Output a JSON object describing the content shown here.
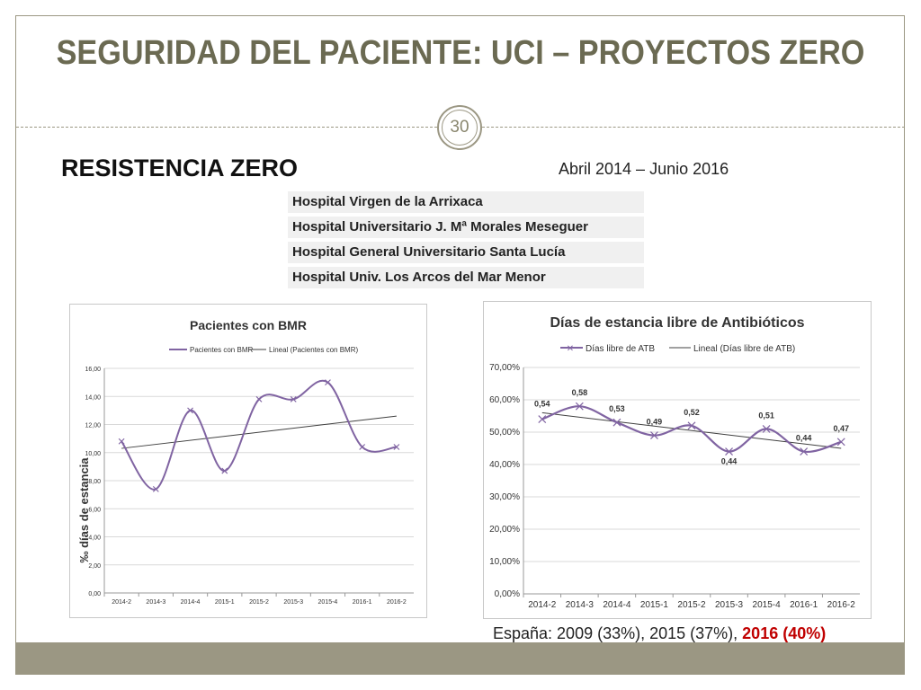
{
  "slide": {
    "title": "SEGURIDAD DEL PACIENTE: UCI – PROYECTOS ZERO",
    "number": "30",
    "section_title": "RESISTENCIA ZERO",
    "period": "Abril 2014 – Junio  2016",
    "hospitals": [
      "Hospital Virgen de la Arrixaca",
      "Hospital Universitario J. Mª Morales Meseguer",
      "Hospital General Universitario Santa Lucía",
      "Hospital Univ. Los Arcos del Mar Menor"
    ],
    "footer": {
      "prefix": "España: 2009 (33%), 2015 (37%), ",
      "highlight": "2016 (40%)"
    }
  },
  "colors": {
    "accent": "#9b9783",
    "title": "#6b6a52",
    "series": "#8064a2",
    "trend": "#404040",
    "highlight": "#c00000"
  },
  "chart_data": [
    {
      "type": "line",
      "title": "Pacientes con BMR",
      "ylabel": "‰ días de estancia",
      "xlabel": "",
      "categories": [
        "2014-2",
        "2014-3",
        "2014-4",
        "2015-1",
        "2015-2",
        "2015-3",
        "2015-4",
        "2016-1",
        "2016-2"
      ],
      "series": [
        {
          "name": "Pacientes con BMR",
          "values": [
            10.8,
            7.4,
            13.0,
            8.7,
            13.8,
            13.8,
            15.0,
            10.4,
            10.4
          ]
        }
      ],
      "trend": {
        "name": "Lineal (Pacientes con BMR)",
        "start": 10.3,
        "end": 12.6
      },
      "ylim": [
        0,
        16
      ],
      "yticks": [
        "0,00",
        "2,00",
        "4,00",
        "6,00",
        "8,00",
        "10,00",
        "12,00",
        "14,00",
        "16,00"
      ],
      "grid": true,
      "legend": "top"
    },
    {
      "type": "line",
      "title": "Días de estancia libre de Antibióticos",
      "xlabel": "",
      "ylabel": "",
      "categories": [
        "2014-2",
        "2014-3",
        "2014-4",
        "2015-1",
        "2015-2",
        "2015-3",
        "2015-4",
        "2016-1",
        "2016-2"
      ],
      "series": [
        {
          "name": "Días libre de ATB",
          "values": [
            0.54,
            0.58,
            0.53,
            0.49,
            0.52,
            0.44,
            0.51,
            0.44,
            0.47
          ]
        }
      ],
      "data_labels": [
        "0,54",
        "0,58",
        "0,53",
        "0,49",
        "0,52",
        "0,44",
        "0,51",
        "0,44",
        "0,47"
      ],
      "trend": {
        "name": "Lineal (Días libre de ATB)",
        "start": 0.56,
        "end": 0.45
      },
      "ylim": [
        0,
        0.7
      ],
      "yticks": [
        "0,00%",
        "10,00%",
        "20,00%",
        "30,00%",
        "40,00%",
        "50,00%",
        "60,00%",
        "70,00%"
      ],
      "grid": true,
      "legend": "top"
    }
  ]
}
